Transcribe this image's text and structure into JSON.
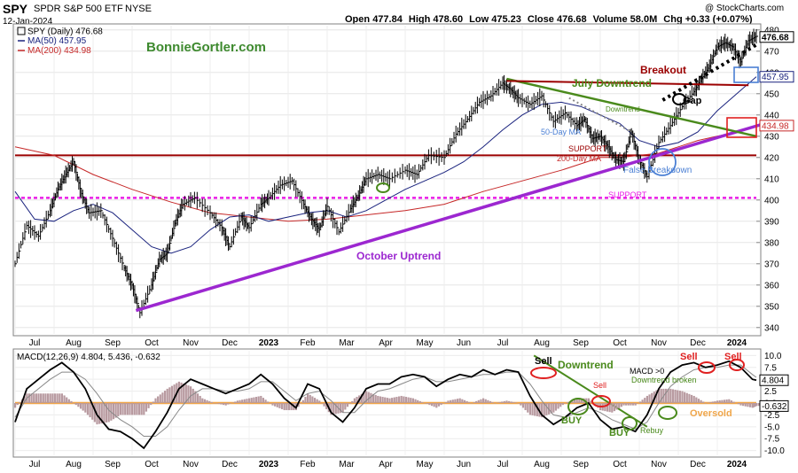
{
  "header": {
    "symbol": "SPY",
    "name": "SPDR S&P 500 ETF",
    "exchange": "NYSE",
    "date": "12-Jan-2024",
    "source": "@ StockCharts.com",
    "open_label": "Open",
    "open": "477.84",
    "high_label": "High",
    "high": "478.60",
    "low_label": "Low",
    "low": "475.23",
    "close_label": "Close",
    "close": "476.68",
    "volume_label": "Volume",
    "volume": "58.0M",
    "chg_label": "Chg",
    "chg": "+0.33 (+0.07%)"
  },
  "legend": {
    "price": "SPY (Daily) 476.68",
    "ma50": "MA(50) 457.95",
    "ma200": "MA(200) 434.98",
    "macd_label": "MACD(12,26,9) 4.804, 5.436, -0.632"
  },
  "watermark": "BonnieGortler.com",
  "colors": {
    "price": "#000000",
    "ma50": "#1a237e",
    "ma200": "#c62828",
    "uptrend": "#9c27d0",
    "downtrend": "#4a8a1c",
    "resistance": "#9b0000",
    "support_dotted": "#e91ee6",
    "macd_hist": "#b89aa0",
    "macd_zero": "#f0a64a",
    "annot_blue": "#4a7fd4"
  },
  "annotations": {
    "breakout": "Breakout",
    "gap": "Gap",
    "july_downtrend": "July  Downtrend",
    "downtrend_small": "Downtrend",
    "ma50_label": "50-Day MA",
    "support_label": "SUPPORT",
    "ma200_label": "200-Day MA",
    "false_breakdown": "False Breakdown",
    "support_lower": "SUPPORT",
    "october_uptrend": "October Uptrend",
    "macd_sell1": "Sell",
    "macd_downtrend": "Downtrend",
    "macd_sell2": "Sell",
    "macd_gt0": "MACD >0",
    "macd_downtrend_broken": "Downtrend broken",
    "macd_sell3": "Sell",
    "macd_sell4": "Sell",
    "macd_buy1": "BUY",
    "macd_buy2": "BUY",
    "macd_rebuy": "Rebuy",
    "macd_oversold": "Oversold"
  },
  "chart_data": {
    "type": "line",
    "price_axis": {
      "ticks": [
        340,
        350,
        360,
        370,
        380,
        390,
        400,
        410,
        420,
        430,
        440,
        450,
        460,
        470,
        480
      ],
      "range": [
        337,
        482
      ],
      "right_labels": [
        "476.68",
        "457.95",
        "434.98"
      ]
    },
    "macd_axis": {
      "ticks": [
        10.0,
        7.5,
        5.0,
        2.5,
        0.0,
        -2.5,
        -5.0,
        -7.5,
        -10.0
      ],
      "tick_labels": [
        "10.0",
        "7.5",
        "5.0",
        "2.5",
        "0.0",
        "-2.5",
        "-5.0",
        "-7.5",
        "-10.0"
      ],
      "range": [
        -11,
        11
      ],
      "right_labels": [
        "4.804",
        "-0.632"
      ]
    },
    "time_axis": [
      "Jul",
      "Aug",
      "Sep",
      "Oct",
      "Nov",
      "Dec",
      "2023",
      "Feb",
      "Mar",
      "Apr",
      "May",
      "Jun",
      "Jul",
      "Aug",
      "Sep",
      "Oct",
      "Nov",
      "Dec",
      "2024"
    ],
    "time_span": [
      0,
      19
    ],
    "series": [
      {
        "key": "price",
        "x": [
          0,
          0.3,
          0.6,
          0.9,
          1.1,
          1.3,
          1.5,
          1.7,
          1.9,
          2.2,
          2.5,
          2.8,
          3.0,
          3.2,
          3.5,
          3.7,
          3.9,
          4.1,
          4.3,
          4.6,
          5.0,
          5.3,
          5.5,
          5.8,
          6.0,
          6.3,
          6.5,
          6.8,
          7.1,
          7.4,
          7.6,
          7.8,
          8.0,
          8.3,
          8.6,
          8.8,
          9.0,
          9.3,
          9.6,
          10.0,
          10.3,
          10.6,
          11.0,
          11.3,
          11.6,
          11.9,
          12.2,
          12.5,
          12.7,
          12.9,
          13.2,
          13.5,
          13.8,
          14.1,
          14.4,
          14.6,
          14.8,
          15.0,
          15.2,
          15.4,
          15.6,
          15.8,
          16.0,
          16.2,
          16.5,
          16.8,
          17.1,
          17.4,
          17.6,
          17.8,
          18.0,
          18.2,
          18.4,
          18.6,
          18.8,
          19.0
        ],
        "y": [
          370,
          388,
          383,
          395,
          405,
          412,
          418,
          403,
          394,
          395,
          382,
          368,
          360,
          347,
          360,
          372,
          375,
          389,
          398,
          401,
          394,
          387,
          378,
          392,
          387,
          398,
          401,
          407,
          409,
          398,
          391,
          386,
          397,
          385,
          396,
          402,
          410,
          412,
          410,
          414,
          412,
          421,
          420,
          431,
          438,
          446,
          449,
          455,
          452,
          448,
          445,
          449,
          437,
          441,
          435,
          438,
          429,
          430,
          425,
          419,
          418,
          432,
          419,
          411,
          427,
          435,
          444,
          451,
          457,
          463,
          472,
          474,
          472,
          465,
          475,
          477
        ]
      },
      {
        "key": "ma50",
        "x": [
          0,
          0.5,
          1.0,
          1.5,
          2.0,
          2.5,
          3.0,
          3.5,
          4.0,
          4.5,
          5.0,
          5.5,
          6.0,
          6.5,
          7.0,
          7.5,
          8.0,
          8.5,
          9.0,
          9.5,
          10.0,
          10.5,
          11.0,
          11.5,
          12.0,
          12.5,
          13.0,
          13.5,
          14.0,
          14.5,
          15.0,
          15.5,
          16.0,
          16.5,
          17.0,
          17.5,
          18.0,
          18.5,
          19.0
        ],
        "y": [
          404,
          391,
          390,
          395,
          398,
          394,
          386,
          378,
          375,
          378,
          386,
          392,
          393,
          390,
          392,
          394,
          395,
          392,
          395,
          400,
          405,
          409,
          413,
          418,
          425,
          433,
          440,
          445,
          446,
          444,
          440,
          436,
          428,
          425,
          427,
          432,
          442,
          450,
          458
        ]
      },
      {
        "key": "ma200",
        "x": [
          0,
          1.0,
          2.0,
          3.0,
          4.0,
          5.0,
          6.0,
          7.0,
          8.0,
          9.0,
          10.0,
          11.0,
          12.0,
          13.0,
          14.0,
          15.0,
          15.5,
          16.0,
          16.5,
          17.0,
          17.5,
          18.0,
          18.5,
          19.0
        ],
        "y": [
          425,
          421,
          412,
          405,
          399,
          394,
          392,
          390,
          391,
          393,
          395,
          398,
          404,
          409,
          414,
          420,
          420,
          421,
          422,
          425,
          428,
          430,
          432,
          435
        ]
      },
      {
        "key": "macd",
        "x": [
          0,
          0.3,
          0.6,
          0.9,
          1.2,
          1.5,
          1.8,
          2.1,
          2.4,
          2.7,
          3.0,
          3.3,
          3.6,
          3.9,
          4.2,
          4.5,
          4.8,
          5.1,
          5.4,
          5.7,
          6.0,
          6.3,
          6.6,
          6.9,
          7.2,
          7.5,
          7.8,
          8.1,
          8.4,
          8.7,
          9.0,
          9.3,
          9.6,
          9.9,
          10.2,
          10.5,
          10.8,
          11.1,
          11.4,
          11.7,
          12.0,
          12.3,
          12.6,
          12.9,
          13.2,
          13.5,
          13.8,
          14.1,
          14.4,
          14.7,
          15.0,
          15.3,
          15.6,
          15.9,
          16.2,
          16.5,
          16.8,
          17.1,
          17.4,
          17.7,
          18.0,
          18.3,
          18.6,
          18.9,
          19.0
        ],
        "y": [
          -4,
          3,
          5,
          7,
          8.5,
          6.5,
          3,
          -2.5,
          -5.5,
          -6,
          -7.5,
          -9.5,
          -6,
          -2,
          3,
          5,
          4,
          3,
          2,
          3,
          4,
          6,
          4,
          1,
          -1,
          4,
          3,
          -2,
          -4,
          -1,
          3,
          4,
          4,
          5.5,
          6,
          5.5,
          3.5,
          5,
          6,
          5.5,
          7,
          6,
          7,
          6.5,
          1.5,
          -2.5,
          -4.5,
          -3,
          -1,
          0,
          -3.5,
          -5.5,
          -5,
          -6,
          -2.5,
          3,
          6.5,
          8,
          8.5,
          7.5,
          8,
          8.8,
          7.5,
          5,
          4.8
        ]
      },
      {
        "key": "signal",
        "x": [
          0,
          0.3,
          0.6,
          0.9,
          1.2,
          1.5,
          1.8,
          2.1,
          2.4,
          2.7,
          3.0,
          3.3,
          3.6,
          3.9,
          4.2,
          4.5,
          4.8,
          5.1,
          5.4,
          5.7,
          6.0,
          6.3,
          6.6,
          6.9,
          7.2,
          7.5,
          7.8,
          8.1,
          8.4,
          8.7,
          9.0,
          9.3,
          9.6,
          9.9,
          10.2,
          10.5,
          10.8,
          11.1,
          11.4,
          11.7,
          12.0,
          12.3,
          12.6,
          12.9,
          13.2,
          13.5,
          13.8,
          14.1,
          14.4,
          14.7,
          15.0,
          15.3,
          15.6,
          15.9,
          16.2,
          16.5,
          16.8,
          17.1,
          17.4,
          17.7,
          18.0,
          18.3,
          18.6,
          18.9,
          19.0
        ],
        "y": [
          -3,
          1,
          3,
          5,
          6.5,
          6.5,
          5,
          2,
          -1.5,
          -3.5,
          -5,
          -7,
          -7,
          -5,
          -1.5,
          1.5,
          3,
          3,
          2.5,
          2.5,
          3,
          4.5,
          4.5,
          2.5,
          0.5,
          2,
          2.5,
          0.5,
          -2,
          -2,
          0.5,
          2.5,
          3,
          4,
          5,
          5.5,
          4.5,
          4.5,
          5,
          5.5,
          6,
          6,
          6.5,
          6.5,
          4,
          0.5,
          -2.5,
          -3,
          -2,
          -1,
          -2,
          -3.5,
          -4.5,
          -5.5,
          -4,
          0,
          3.5,
          5.5,
          7,
          7.5,
          7.5,
          8,
          8,
          6,
          5.4
        ]
      },
      {
        "key": "hist",
        "x": [
          0,
          0.3,
          0.6,
          0.9,
          1.2,
          1.5,
          1.8,
          2.1,
          2.4,
          2.7,
          3.0,
          3.3,
          3.6,
          3.9,
          4.2,
          4.5,
          4.8,
          5.1,
          5.4,
          5.7,
          6.0,
          6.3,
          6.6,
          6.9,
          7.2,
          7.5,
          7.8,
          8.1,
          8.4,
          8.7,
          9.0,
          9.3,
          9.6,
          9.9,
          10.2,
          10.5,
          10.8,
          11.1,
          11.4,
          11.7,
          12.0,
          12.3,
          12.6,
          12.9,
          13.2,
          13.5,
          13.8,
          14.1,
          14.4,
          14.7,
          15.0,
          15.3,
          15.6,
          15.9,
          16.2,
          16.5,
          16.8,
          17.1,
          17.4,
          17.7,
          18.0,
          18.3,
          18.6,
          18.9,
          19.0
        ],
        "y": [
          -1,
          2,
          2,
          2,
          2,
          0,
          -2,
          -4.5,
          -4,
          -2.5,
          -2.5,
          -2.5,
          1,
          3,
          4.5,
          3.5,
          1,
          0,
          -0.5,
          0.5,
          1,
          1.5,
          -0.5,
          -1.5,
          -1.5,
          2,
          0.5,
          -2.5,
          -2,
          1,
          2.5,
          1.5,
          1,
          1.5,
          1,
          0,
          -1,
          0.5,
          1,
          0,
          1,
          0,
          0.5,
          0,
          -2.5,
          -3,
          -2,
          0,
          1,
          1,
          -1.5,
          -2,
          -0.5,
          -0.5,
          1.5,
          3,
          3,
          2.5,
          1.5,
          0,
          0.5,
          0.8,
          -0.5,
          -1,
          -0.6
        ]
      }
    ],
    "lines": {
      "october_uptrend": {
        "from": [
          3.1,
          348
        ],
        "to": [
          19.4,
          437
        ]
      },
      "july_downtrend": {
        "from": [
          12.6,
          457
        ],
        "to": [
          19.0,
          430
        ]
      },
      "resistance_support": {
        "from": [
          0,
          421
        ],
        "to": [
          19.0,
          421
        ]
      },
      "breakout_line": {
        "from": [
          12.6,
          456
        ],
        "to": [
          18.8,
          454
        ]
      },
      "support_dotted": {
        "from": [
          0,
          401
        ],
        "to": [
          19.0,
          401
        ]
      },
      "trend_black_dotted": {
        "from": [
          16.6,
          447
        ],
        "to": [
          19.0,
          473
        ]
      },
      "downtrend_small_dotted": {
        "from": [
          14.2,
          448
        ],
        "to": [
          15.8,
          432
        ]
      },
      "macd_zero": {
        "from": [
          0,
          0
        ],
        "to": [
          19.0,
          0
        ]
      },
      "macd_downtrend": {
        "from": [
          13.3,
          10
        ],
        "to": [
          16.2,
          -5
        ]
      }
    }
  }
}
